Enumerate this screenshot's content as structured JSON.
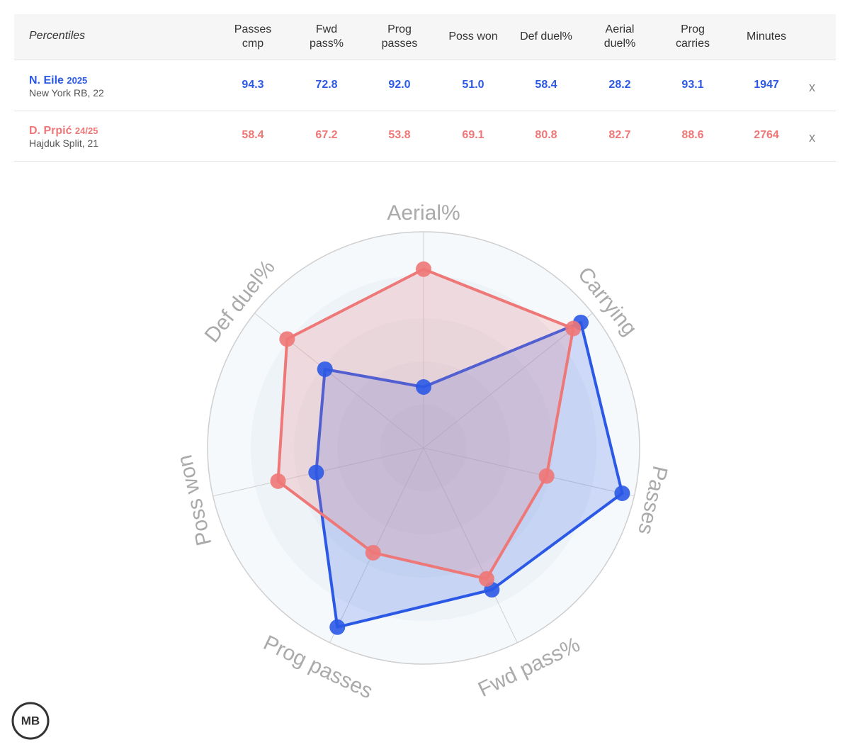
{
  "table": {
    "header": [
      "Percentiles",
      "Passes\ncmp",
      "Fwd\npass%",
      "Prog\npasses",
      "Poss won",
      "Def duel%",
      "Aerial\nduel%",
      "Prog\ncarries",
      "Minutes"
    ],
    "rows": [
      {
        "name": "N. Eile",
        "season": "2025",
        "team": "New York RB, 22",
        "color": "#2b59e6",
        "cells": [
          "94.3",
          "72.8",
          "92.0",
          "51.0",
          "58.4",
          "28.2",
          "93.1",
          "1947"
        ],
        "remove": "x"
      },
      {
        "name": "D. Prpić",
        "season": "24/25",
        "team": "Hajduk Split, 21",
        "color": "#ee7777",
        "cells": [
          "58.4",
          "67.2",
          "53.8",
          "69.1",
          "80.8",
          "82.7",
          "88.6",
          "2764"
        ],
        "remove": "x"
      }
    ]
  },
  "chart_data": {
    "type": "radar",
    "categories": [
      "Aerial%",
      "Carrying",
      "Passes",
      "Fwd pass%",
      "Prog passes",
      "Poss won",
      "Def duel%"
    ],
    "rlim": [
      0,
      100
    ],
    "series": [
      {
        "color": "#2b59e6",
        "values": [
          28.2,
          93.1,
          94.3,
          72.8,
          92.0,
          51.0,
          58.4
        ]
      },
      {
        "color": "#ee7777",
        "values": [
          82.7,
          88.6,
          58.4,
          67.2,
          53.8,
          69.1,
          80.8
        ]
      }
    ]
  },
  "logo": "MB"
}
